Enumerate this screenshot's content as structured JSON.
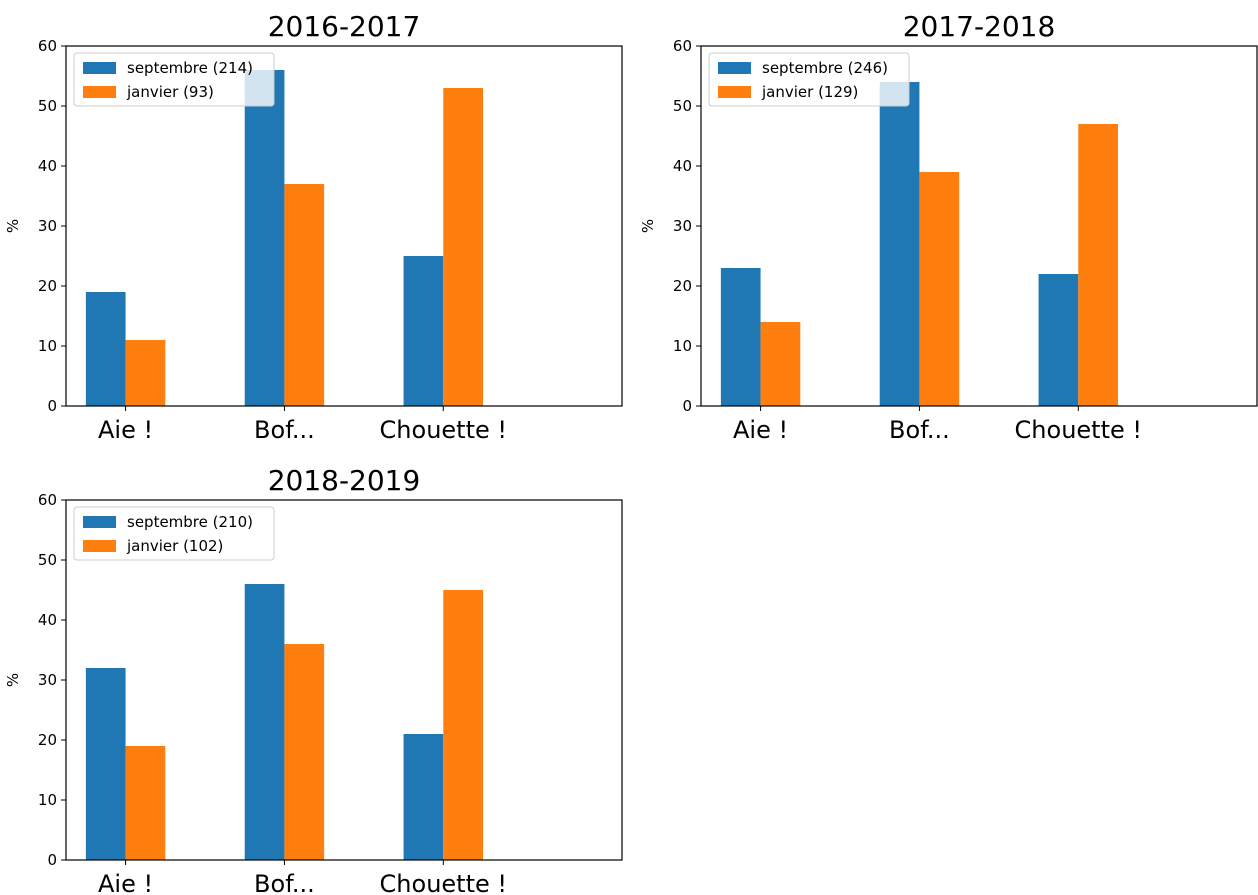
{
  "colors": {
    "septembre": "#1f77b4",
    "janvier": "#ff7f0e",
    "axis": "#000000",
    "legend_border": "#cccccc"
  },
  "chart_data": [
    {
      "type": "bar",
      "title": "2016-2017",
      "categories": [
        "Aie !",
        "Bof...",
        "Chouette !"
      ],
      "series": [
        {
          "name": "septembre (214)",
          "values": [
            19,
            56,
            25
          ]
        },
        {
          "name": "janvier (93)",
          "values": [
            11,
            37,
            53
          ]
        }
      ],
      "xlabel": "",
      "ylabel": "%",
      "ylim": [
        0,
        60
      ],
      "yticks": [
        "0",
        "10",
        "20",
        "30",
        "40",
        "50",
        "60"
      ],
      "legend": "top-left",
      "grid": false
    },
    {
      "type": "bar",
      "title": "2017-2018",
      "categories": [
        "Aie !",
        "Bof...",
        "Chouette !"
      ],
      "series": [
        {
          "name": "septembre (246)",
          "values": [
            23,
            54,
            22
          ]
        },
        {
          "name": "janvier (129)",
          "values": [
            14,
            39,
            47
          ]
        }
      ],
      "xlabel": "",
      "ylabel": "%",
      "ylim": [
        0,
        60
      ],
      "yticks": [
        "0",
        "10",
        "20",
        "30",
        "40",
        "50",
        "60"
      ],
      "legend": "top-left",
      "grid": false
    },
    {
      "type": "bar",
      "title": "2018-2019",
      "categories": [
        "Aie !",
        "Bof...",
        "Chouette !"
      ],
      "series": [
        {
          "name": "septembre (210)",
          "values": [
            32,
            46,
            21
          ]
        },
        {
          "name": "janvier (102)",
          "values": [
            19,
            36,
            45
          ]
        }
      ],
      "xlabel": "",
      "ylabel": "%",
      "ylim": [
        0,
        60
      ],
      "yticks": [
        "0",
        "10",
        "20",
        "30",
        "40",
        "50",
        "60"
      ],
      "legend": "top-left",
      "grid": false
    }
  ]
}
